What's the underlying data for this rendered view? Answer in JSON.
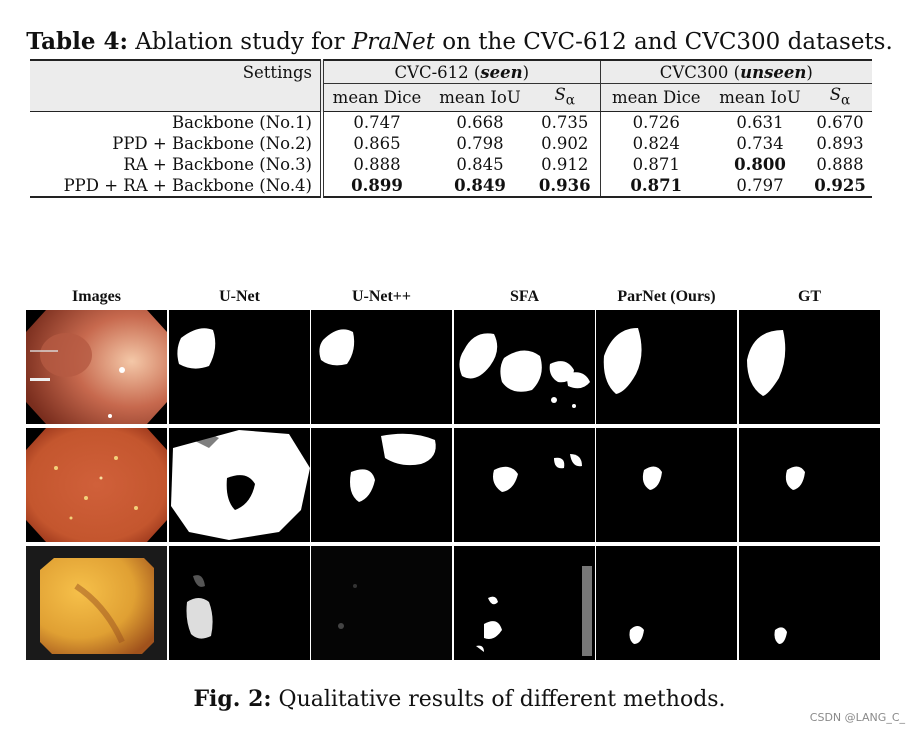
{
  "table": {
    "caption_label": "Table 4:",
    "caption_text_1": "Ablation study for ",
    "caption_italic": "PraNet",
    "caption_text_2": " on the CVC-612 and CVC300 datasets.",
    "settings_header": "Settings",
    "group1": "CVC-612 (seen)",
    "group1_name": "CVC-612 (",
    "group1_tag": "seen",
    "group2_name": "CVC300 (",
    "group2_tag": "unseen",
    "close_paren": ")",
    "metrics": [
      "mean Dice",
      "mean IoU",
      "S",
      "mean Dice",
      "mean IoU",
      "S"
    ],
    "metric_sub": "α",
    "rows": [
      {
        "label": "Backbone (No.1)",
        "values": [
          "0.747",
          "0.668",
          "0.735",
          "0.726",
          "0.631",
          "0.670"
        ],
        "bold": [
          false,
          false,
          false,
          false,
          false,
          false
        ]
      },
      {
        "label": "PPD + Backbone (No.2)",
        "values": [
          "0.865",
          "0.798",
          "0.902",
          "0.824",
          "0.734",
          "0.893"
        ],
        "bold": [
          false,
          false,
          false,
          false,
          false,
          false
        ]
      },
      {
        "label": "RA + Backbone (No.3)",
        "values": [
          "0.888",
          "0.845",
          "0.912",
          "0.871",
          "0.800",
          "0.888"
        ],
        "bold": [
          false,
          false,
          false,
          false,
          true,
          false
        ]
      },
      {
        "label": "PPD + RA + Backbone (No.4)",
        "values": [
          "0.899",
          "0.849",
          "0.936",
          "0.871",
          "0.797",
          "0.925"
        ],
        "bold": [
          true,
          true,
          true,
          true,
          false,
          true
        ]
      }
    ]
  },
  "figure": {
    "columns": [
      "Images",
      "U-Net",
      "U-Net++",
      "SFA",
      "ParNet (Ours)",
      "GT"
    ],
    "caption_label": "Fig. 2:",
    "caption_text": " Qualitative results of different methods."
  },
  "watermark": "CSDN @LANG_C_",
  "colors": {
    "header_bg": "#ececec",
    "mask": "#ffffff",
    "background": "#000000",
    "tissue_1": "#c7694e",
    "tissue_2": "#c4562e",
    "tissue_3": "#e0a033"
  }
}
